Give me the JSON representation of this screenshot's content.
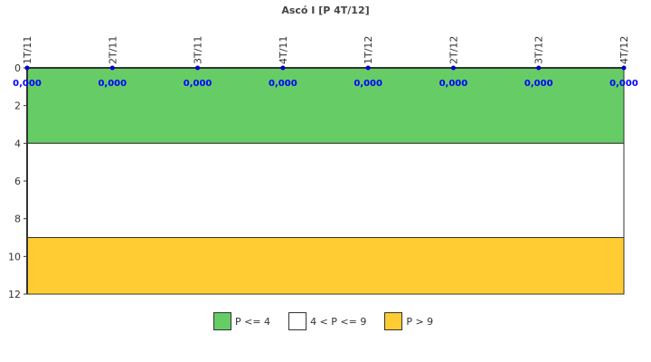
{
  "chart_data": {
    "type": "line",
    "title": "Ascó I [P 4T/12]",
    "categories": [
      "1T/11",
      "2T/11",
      "3T/11",
      "4T/11",
      "1T/12",
      "2T/12",
      "3T/12",
      "4T/12"
    ],
    "values": [
      0,
      0,
      0,
      0,
      0,
      0,
      0,
      0
    ],
    "data_labels": [
      "0,000",
      "0,000",
      "0,000",
      "0,000",
      "0,000",
      "0,000",
      "0,000",
      "0,000"
    ],
    "ylim": [
      0,
      12
    ],
    "y_inverted": true,
    "yticks": [
      "0",
      "2",
      "4",
      "6",
      "8",
      "10",
      "12"
    ],
    "bands": [
      {
        "name": "P <= 4",
        "from": 0,
        "to": 4,
        "color": "#66cc66"
      },
      {
        "name": "4 < P <= 9",
        "from": 4,
        "to": 9,
        "color": "#ffffff"
      },
      {
        "name": "P > 9",
        "from": 9,
        "to": 12,
        "color": "#ffcc33"
      }
    ],
    "series_color": "#0000cc",
    "legend_position": "bottom"
  }
}
